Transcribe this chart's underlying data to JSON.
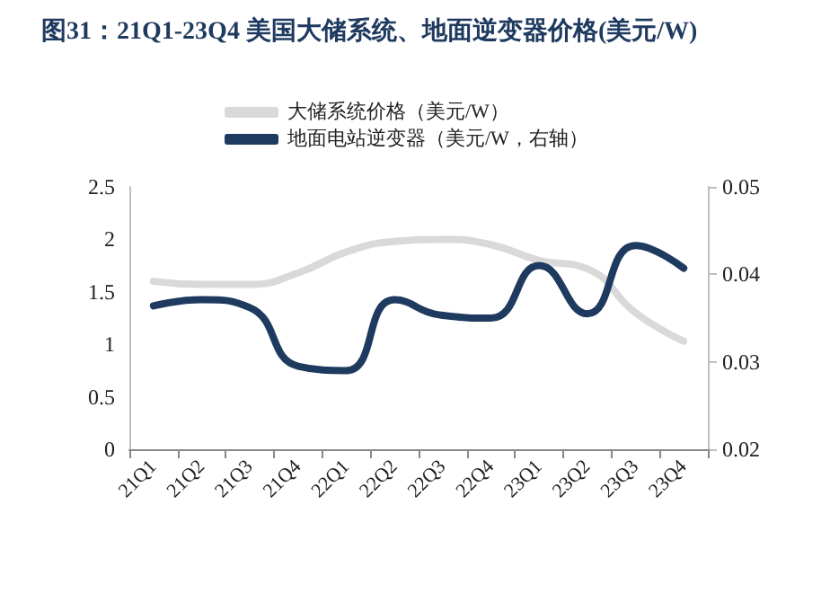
{
  "chart_data": {
    "type": "line",
    "title": "图31：21Q1-23Q4 美国大储系统、地面逆变器价格(美元/W)",
    "categories": [
      "21Q1",
      "21Q2",
      "21Q3",
      "21Q4",
      "22Q1",
      "22Q2",
      "22Q3",
      "22Q4",
      "23Q1",
      "23Q2",
      "23Q3",
      "23Q4"
    ],
    "series": [
      {
        "name": "大储系统价格（美元/W）",
        "color": "#d9d9d9",
        "values": [
          1.6,
          1.57,
          1.57,
          1.68,
          1.88,
          1.98,
          2.0,
          1.95,
          1.8,
          1.72,
          1.3,
          1.03
        ]
      },
      {
        "name": "地面电站逆变器（美元/W，右轴）",
        "color": "#1f3a5f",
        "axis": "y2",
        "values": [
          0.0364,
          0.0371,
          0.0362,
          0.0295,
          0.029,
          0.0371,
          0.0353,
          0.035,
          0.041,
          0.0355,
          0.0433,
          0.0407
        ]
      }
    ],
    "ylim": [
      0,
      2.5
    ],
    "yticks": [
      0,
      0.5,
      1,
      1.5,
      2,
      2.5
    ],
    "y2lim": [
      0.02,
      0.05
    ],
    "y2ticks": [
      0.02,
      0.03,
      0.04,
      0.05
    ],
    "grid": false,
    "legend": "top",
    "marker": "none",
    "line_style": "solid"
  }
}
